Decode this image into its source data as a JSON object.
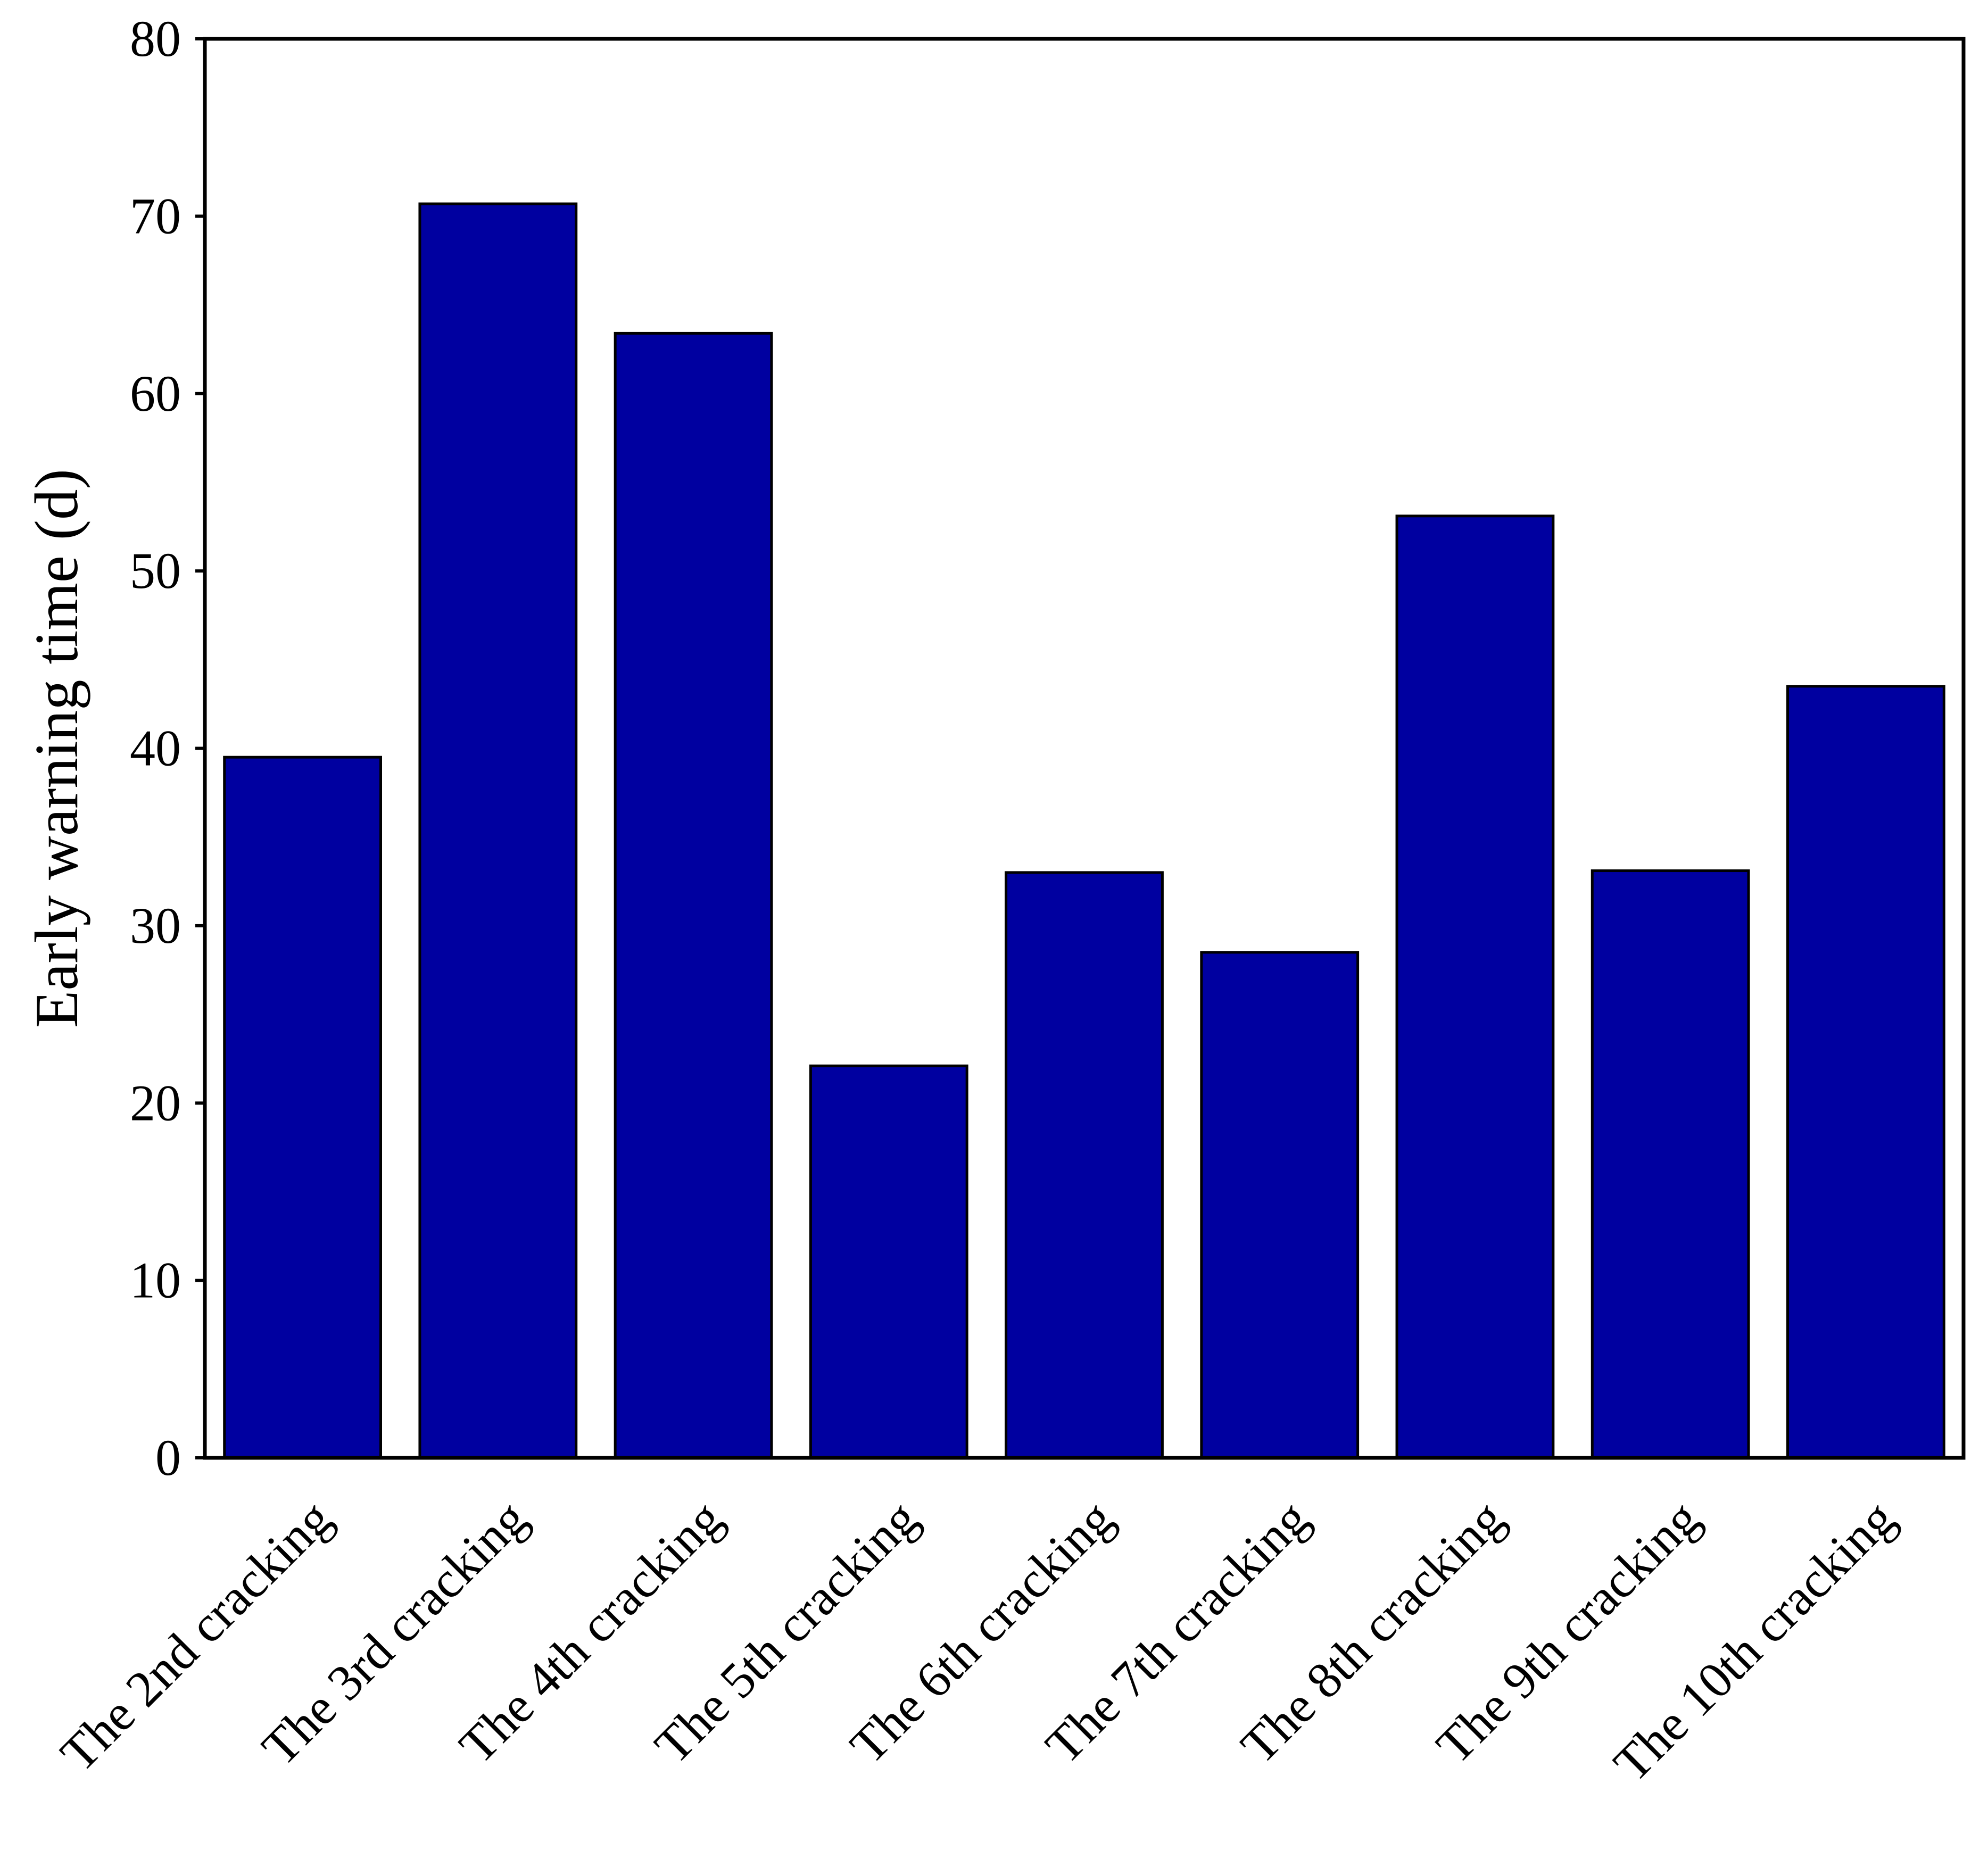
{
  "chart_data": {
    "type": "bar",
    "title": "",
    "xlabel": "",
    "ylabel": "Early warning time (d)",
    "ylim": [
      0,
      80
    ],
    "yticks": [
      0,
      10,
      20,
      30,
      40,
      50,
      60,
      70,
      80
    ],
    "grid": false,
    "categories": [
      "The 2nd cracking",
      "The 3rd cracking",
      "The 4th cracking",
      "The 5th cracking",
      "The 6th cracking",
      "The 7th cracking",
      "The 8th cracking",
      "The 9th cracking",
      "The 10th cracking"
    ],
    "values": [
      39.5,
      70.7,
      63.4,
      22.1,
      33.0,
      28.5,
      53.1,
      33.1,
      43.5
    ],
    "bar_color": "#0000A0",
    "bar_edge_color": "#000000"
  }
}
